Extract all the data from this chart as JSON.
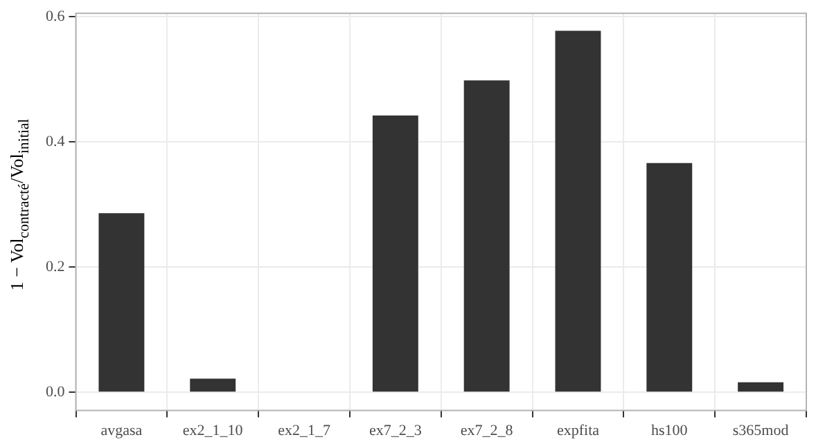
{
  "chart_data": {
    "type": "bar",
    "ylabel": "1 − Vol$_{contracté}$/Vol$_{initial}$",
    "categories": [
      "avgasa",
      "ex2_1_10",
      "ex2_1_7",
      "ex7_2_3",
      "ex7_2_8",
      "expfita",
      "hs100",
      "s365mod"
    ],
    "values": [
      0.286,
      0.022,
      0,
      0.442,
      0.498,
      0.577,
      0.366,
      0.016
    ],
    "color": "#333333",
    "ylim": [
      -0.029,
      0.605
    ],
    "yticks": [
      {
        "value": 0,
        "label": "0.0"
      },
      0.2,
      0.4,
      0.6
    ],
    "grid": true
  }
}
